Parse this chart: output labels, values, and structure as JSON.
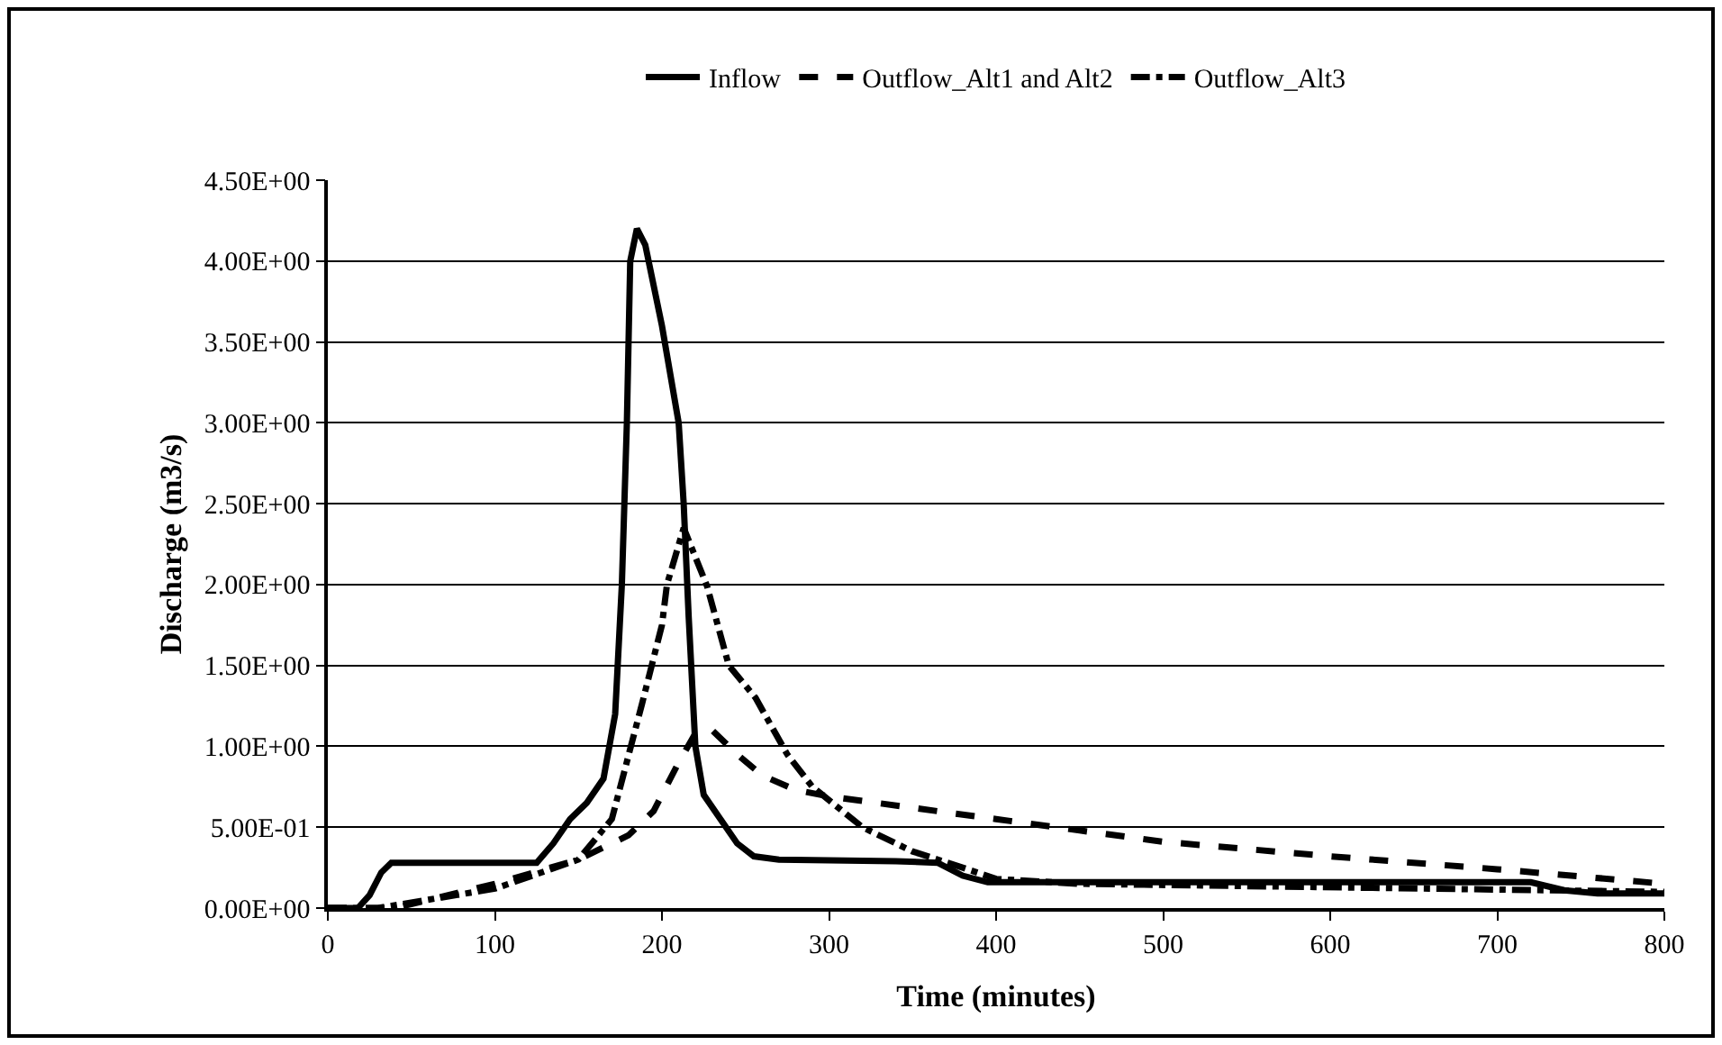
{
  "chart_data": {
    "type": "line",
    "xlabel": "Time (minutes)",
    "ylabel": "Discharge (m3/s)",
    "xlim": [
      0,
      800
    ],
    "xticks": [
      0,
      100,
      200,
      300,
      400,
      500,
      600,
      700,
      800
    ],
    "ylim": [
      0,
      4.5
    ],
    "yticks": [
      {
        "value": 0,
        "label": "0.00E+00"
      },
      {
        "value": 0.5,
        "label": "5.00E-01"
      },
      {
        "value": 1.0,
        "label": "1.00E+00"
      },
      {
        "value": 1.5,
        "label": "1.50E+00"
      },
      {
        "value": 2.0,
        "label": "2.00E+00"
      },
      {
        "value": 2.5,
        "label": "2.50E+00"
      },
      {
        "value": 3.0,
        "label": "3.00E+00"
      },
      {
        "value": 3.5,
        "label": "3.50E+00"
      },
      {
        "value": 4.0,
        "label": "4.00E+00"
      },
      {
        "value": 4.5,
        "label": "4.50E+00"
      }
    ],
    "grid": "y",
    "legend": "top",
    "marker": "none",
    "series": [
      {
        "name": "Inflow",
        "color": "#000000",
        "line_style": "solid",
        "x": [
          0,
          18,
          25,
          32,
          38,
          125,
          135,
          145,
          155,
          165,
          172,
          176,
          179,
          181,
          185,
          190,
          200,
          210,
          213,
          216,
          220,
          225,
          235,
          245,
          255,
          270,
          340,
          365,
          380,
          395,
          450,
          720,
          740,
          760,
          800
        ],
        "values": [
          0,
          0,
          0.08,
          0.22,
          0.28,
          0.28,
          0.4,
          0.55,
          0.65,
          0.8,
          1.2,
          2.0,
          3.0,
          4.0,
          4.2,
          4.1,
          3.6,
          3.0,
          2.5,
          1.8,
          1.0,
          0.7,
          0.55,
          0.4,
          0.32,
          0.3,
          0.29,
          0.28,
          0.2,
          0.16,
          0.16,
          0.16,
          0.11,
          0.09,
          0.09
        ]
      },
      {
        "name": "Outflow_Alt1 and Alt2",
        "color": "#000000",
        "line_style": "dashed",
        "x": [
          0,
          40,
          100,
          150,
          180,
          195,
          210,
          220,
          230,
          245,
          260,
          280,
          300,
          350,
          400,
          450,
          500,
          600,
          700,
          800
        ],
        "values": [
          0,
          0,
          0.15,
          0.3,
          0.45,
          0.6,
          0.9,
          1.08,
          1.1,
          0.95,
          0.82,
          0.73,
          0.69,
          0.62,
          0.55,
          0.48,
          0.41,
          0.32,
          0.24,
          0.15
        ]
      },
      {
        "name": "Outflow_Alt3",
        "color": "#000000",
        "line_style": "dashdot",
        "x": [
          0,
          30,
          100,
          150,
          170,
          188,
          200,
          203,
          213,
          227,
          240,
          256,
          275,
          290,
          320,
          350,
          380,
          400,
          450,
          800
        ],
        "values": [
          0,
          0,
          0.12,
          0.3,
          0.55,
          1.26,
          1.75,
          2.0,
          2.35,
          1.99,
          1.5,
          1.3,
          0.95,
          0.75,
          0.5,
          0.35,
          0.25,
          0.18,
          0.15,
          0.1
        ]
      }
    ]
  }
}
